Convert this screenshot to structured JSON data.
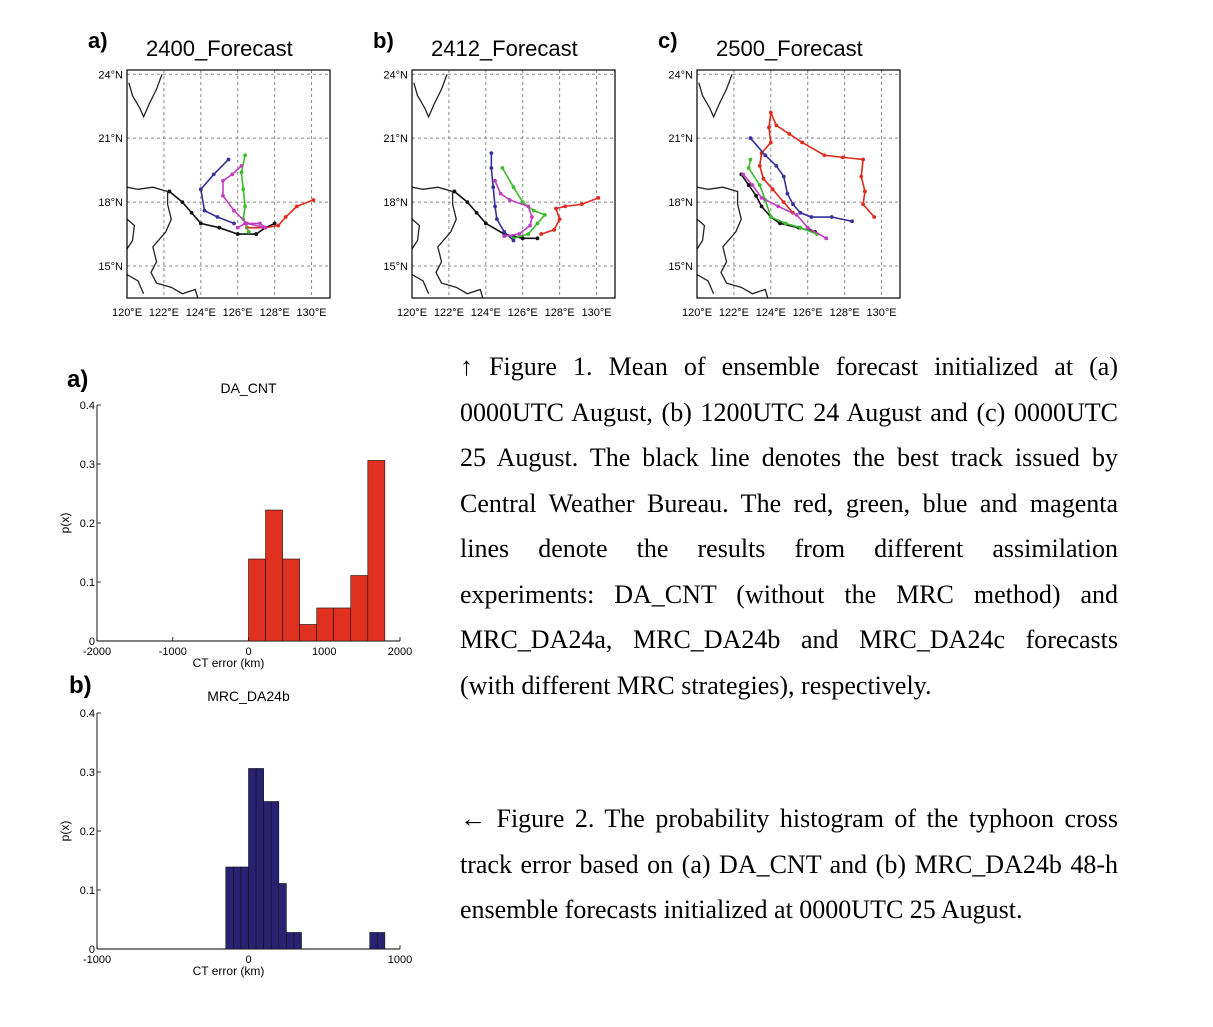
{
  "track_maps": [
    {
      "panel_label": "a)",
      "title": "2400_Forecast",
      "lat_ticks": [
        "24°N",
        "21°N",
        "18°N",
        "15°N"
      ],
      "lon_ticks": [
        "120°E",
        "122°E",
        "124°E",
        "126°E",
        "128°E",
        "130°E"
      ],
      "tracks": {
        "best": [
          [
            122.3,
            18.5
          ],
          [
            123.0,
            18.0
          ],
          [
            123.5,
            17.5
          ],
          [
            124.0,
            17.0
          ],
          [
            125.0,
            16.8
          ],
          [
            126.0,
            16.5
          ],
          [
            127.0,
            16.5
          ],
          [
            127.5,
            16.8
          ],
          [
            128.0,
            17.0
          ]
        ],
        "red": [
          [
            126.5,
            16.8
          ],
          [
            127.5,
            16.8
          ],
          [
            128.2,
            16.9
          ],
          [
            128.6,
            17.3
          ],
          [
            129.2,
            17.8
          ],
          [
            130.1,
            18.1
          ]
        ],
        "green": [
          [
            126.6,
            16.6
          ],
          [
            126.3,
            17.2
          ],
          [
            126.4,
            17.8
          ],
          [
            126.3,
            18.6
          ],
          [
            126.2,
            19.4
          ],
          [
            126.4,
            20.2
          ]
        ],
        "blue": [
          [
            125.8,
            17.0
          ],
          [
            124.9,
            17.3
          ],
          [
            124.2,
            17.6
          ],
          [
            124.0,
            18.6
          ],
          [
            124.7,
            19.3
          ],
          [
            125.5,
            20.0
          ]
        ],
        "magenta": [
          [
            126.0,
            16.8
          ],
          [
            126.4,
            17.0
          ],
          [
            127.2,
            17.0
          ],
          [
            127.5,
            16.8
          ],
          [
            126.5,
            17.0
          ],
          [
            125.8,
            17.6
          ],
          [
            125.2,
            18.3
          ],
          [
            125.2,
            19.0
          ],
          [
            125.7,
            19.3
          ],
          [
            126.2,
            19.7
          ]
        ]
      }
    },
    {
      "panel_label": "b)",
      "title": "2412_Forecast",
      "lat_ticks": [
        "24°N",
        "21°N",
        "18°N",
        "15°N"
      ],
      "lon_ticks": [
        "120°E",
        "122°E",
        "124°E",
        "126°E",
        "128°E",
        "130°E"
      ],
      "tracks": {
        "best": [
          [
            122.3,
            18.5
          ],
          [
            123.0,
            18.0
          ],
          [
            123.5,
            17.5
          ],
          [
            124.0,
            17.0
          ],
          [
            125.0,
            16.5
          ],
          [
            126.0,
            16.3
          ],
          [
            126.8,
            16.3
          ]
        ],
        "red": [
          [
            127.0,
            16.5
          ],
          [
            127.7,
            16.7
          ],
          [
            128.0,
            17.2
          ],
          [
            127.8,
            17.7
          ],
          [
            128.3,
            17.8
          ],
          [
            129.2,
            17.9
          ],
          [
            130.1,
            18.2
          ]
        ],
        "green": [
          [
            125.5,
            16.3
          ],
          [
            126.3,
            16.5
          ],
          [
            126.8,
            17.0
          ],
          [
            127.2,
            17.4
          ],
          [
            126.6,
            17.6
          ],
          [
            126.0,
            18.0
          ],
          [
            125.5,
            18.7
          ],
          [
            124.9,
            19.6
          ]
        ],
        "blue": [
          [
            125.5,
            16.2
          ],
          [
            125.0,
            16.6
          ],
          [
            124.6,
            17.2
          ],
          [
            124.5,
            17.8
          ],
          [
            124.4,
            18.7
          ],
          [
            124.3,
            19.6
          ],
          [
            124.3,
            20.3
          ]
        ],
        "magenta": [
          [
            125.0,
            16.4
          ],
          [
            125.8,
            16.5
          ],
          [
            126.4,
            16.9
          ],
          [
            126.5,
            17.3
          ],
          [
            126.3,
            17.8
          ],
          [
            125.3,
            18.1
          ],
          [
            124.8,
            18.4
          ],
          [
            124.5,
            19.0
          ]
        ]
      }
    },
    {
      "panel_label": "c)",
      "title": "2500_Forecast",
      "lat_ticks": [
        "24°N",
        "21°N",
        "18°N",
        "15°N"
      ],
      "lon_ticks": [
        "120°E",
        "122°E",
        "124°E",
        "126°E",
        "128°E",
        "130°E"
      ],
      "tracks": {
        "best": [
          [
            122.4,
            19.3
          ],
          [
            122.8,
            18.8
          ],
          [
            123.2,
            18.3
          ],
          [
            123.5,
            17.8
          ],
          [
            124.0,
            17.3
          ],
          [
            124.5,
            17.0
          ],
          [
            125.5,
            16.8
          ],
          [
            126.4,
            16.6
          ]
        ],
        "red": [
          [
            125.2,
            17.5
          ],
          [
            124.7,
            18.0
          ],
          [
            124.1,
            18.6
          ],
          [
            123.6,
            19.1
          ],
          [
            123.4,
            19.7
          ],
          [
            123.5,
            20.3
          ],
          [
            124.0,
            20.8
          ],
          [
            123.9,
            21.5
          ],
          [
            124.0,
            22.2
          ],
          [
            124.3,
            21.6
          ],
          [
            125.0,
            21.2
          ],
          [
            125.7,
            20.8
          ],
          [
            126.9,
            20.2
          ],
          [
            127.9,
            20.1
          ],
          [
            129.0,
            20.0
          ],
          [
            128.9,
            19.2
          ],
          [
            129.1,
            18.5
          ],
          [
            129.0,
            17.9
          ],
          [
            129.6,
            17.3
          ]
        ],
        "green": [
          [
            126.5,
            16.5
          ],
          [
            125.6,
            16.8
          ],
          [
            124.8,
            17.0
          ],
          [
            124.0,
            17.3
          ],
          [
            123.7,
            18.1
          ],
          [
            123.4,
            18.8
          ],
          [
            122.8,
            19.6
          ],
          [
            122.9,
            20.0
          ]
        ],
        "blue": [
          [
            128.4,
            17.1
          ],
          [
            127.3,
            17.3
          ],
          [
            126.2,
            17.3
          ],
          [
            125.6,
            17.5
          ],
          [
            125.2,
            17.9
          ],
          [
            124.9,
            18.4
          ],
          [
            124.7,
            19.2
          ],
          [
            124.3,
            19.7
          ],
          [
            123.7,
            20.2
          ],
          [
            122.9,
            21.0
          ]
        ],
        "magenta": [
          [
            127.0,
            16.3
          ],
          [
            126.0,
            16.8
          ],
          [
            125.4,
            17.4
          ],
          [
            124.4,
            17.8
          ],
          [
            123.5,
            18.2
          ],
          [
            123.0,
            18.8
          ],
          [
            122.5,
            19.3
          ]
        ]
      }
    }
  ],
  "histograms": [
    {
      "panel_label": "a)",
      "title": "DA_CNT",
      "xlabel": "CT error (km)",
      "ylabel": "p(x)",
      "y_ticks": [
        "0",
        "0.1",
        "0.2",
        "0.3",
        "0.4"
      ],
      "x_ticks": [
        "-2000",
        "-1000",
        "0",
        "1000",
        "2000"
      ],
      "xlim": [
        -2000,
        2000
      ],
      "ylim": [
        0,
        0.4
      ],
      "bin_edges": [
        0,
        225,
        450,
        675,
        900,
        1125,
        1350,
        1575,
        1800
      ],
      "values": [
        0.139,
        0.222,
        0.139,
        0.028,
        0.056,
        0.056,
        0.111,
        0.306
      ],
      "bar_color": "#e03020"
    },
    {
      "panel_label": "b)",
      "title": "MRC_DA24b",
      "xlabel": "CT error (km)",
      "ylabel": "p(x)",
      "y_ticks": [
        "0",
        "0.1",
        "0.2",
        "0.3",
        "0.4"
      ],
      "x_ticks": [
        "-1000",
        "0",
        "1000"
      ],
      "xlim": [
        -1000,
        1000
      ],
      "ylim": [
        0,
        0.4
      ],
      "bin_edges": [
        -150,
        -100,
        -50,
        0,
        50,
        100,
        150,
        200,
        250,
        300,
        350,
        400,
        450,
        500,
        550,
        600,
        650,
        700,
        750,
        800,
        850,
        900,
        950
      ],
      "values": [
        0.139,
        0.139,
        0.139,
        0.306,
        0.306,
        0.25,
        0.25,
        0.111,
        0.028,
        0.028,
        0,
        0,
        0,
        0,
        0,
        0,
        0,
        0,
        0,
        0.028,
        0.028,
        0
      ],
      "bar_color": "#2b2173"
    }
  ],
  "figure1_caption": "↑ Figure 1. Mean of ensemble forecast initialized at (a) 0000UTC August, (b) 1200UTC 24 August and (c) 0000UTC 25 August. The black line denotes the best track issued by Central Weather Bureau. The red, green, blue and magenta lines denote the results from different assimilation experiments: DA_CNT (without the MRC method) and MRC_DA24a, MRC_DA24b and MRC_DA24c forecasts (with different MRC strategies), respectively.",
  "figure2_caption": "← Figure 2. The probability histogram of the typhoon cross track error based on (a) DA_CNT and (b) MRC_DA24b 48-h ensemble forecasts initialized at 0000UTC 25 August.",
  "colors": {
    "best_track": "#111111",
    "red_track": "#e02a1e",
    "green_track": "#3dbb2e",
    "blue_track": "#35309a",
    "magenta_track": "#c03ec0",
    "coast": "#222222",
    "grid": "#888888"
  }
}
